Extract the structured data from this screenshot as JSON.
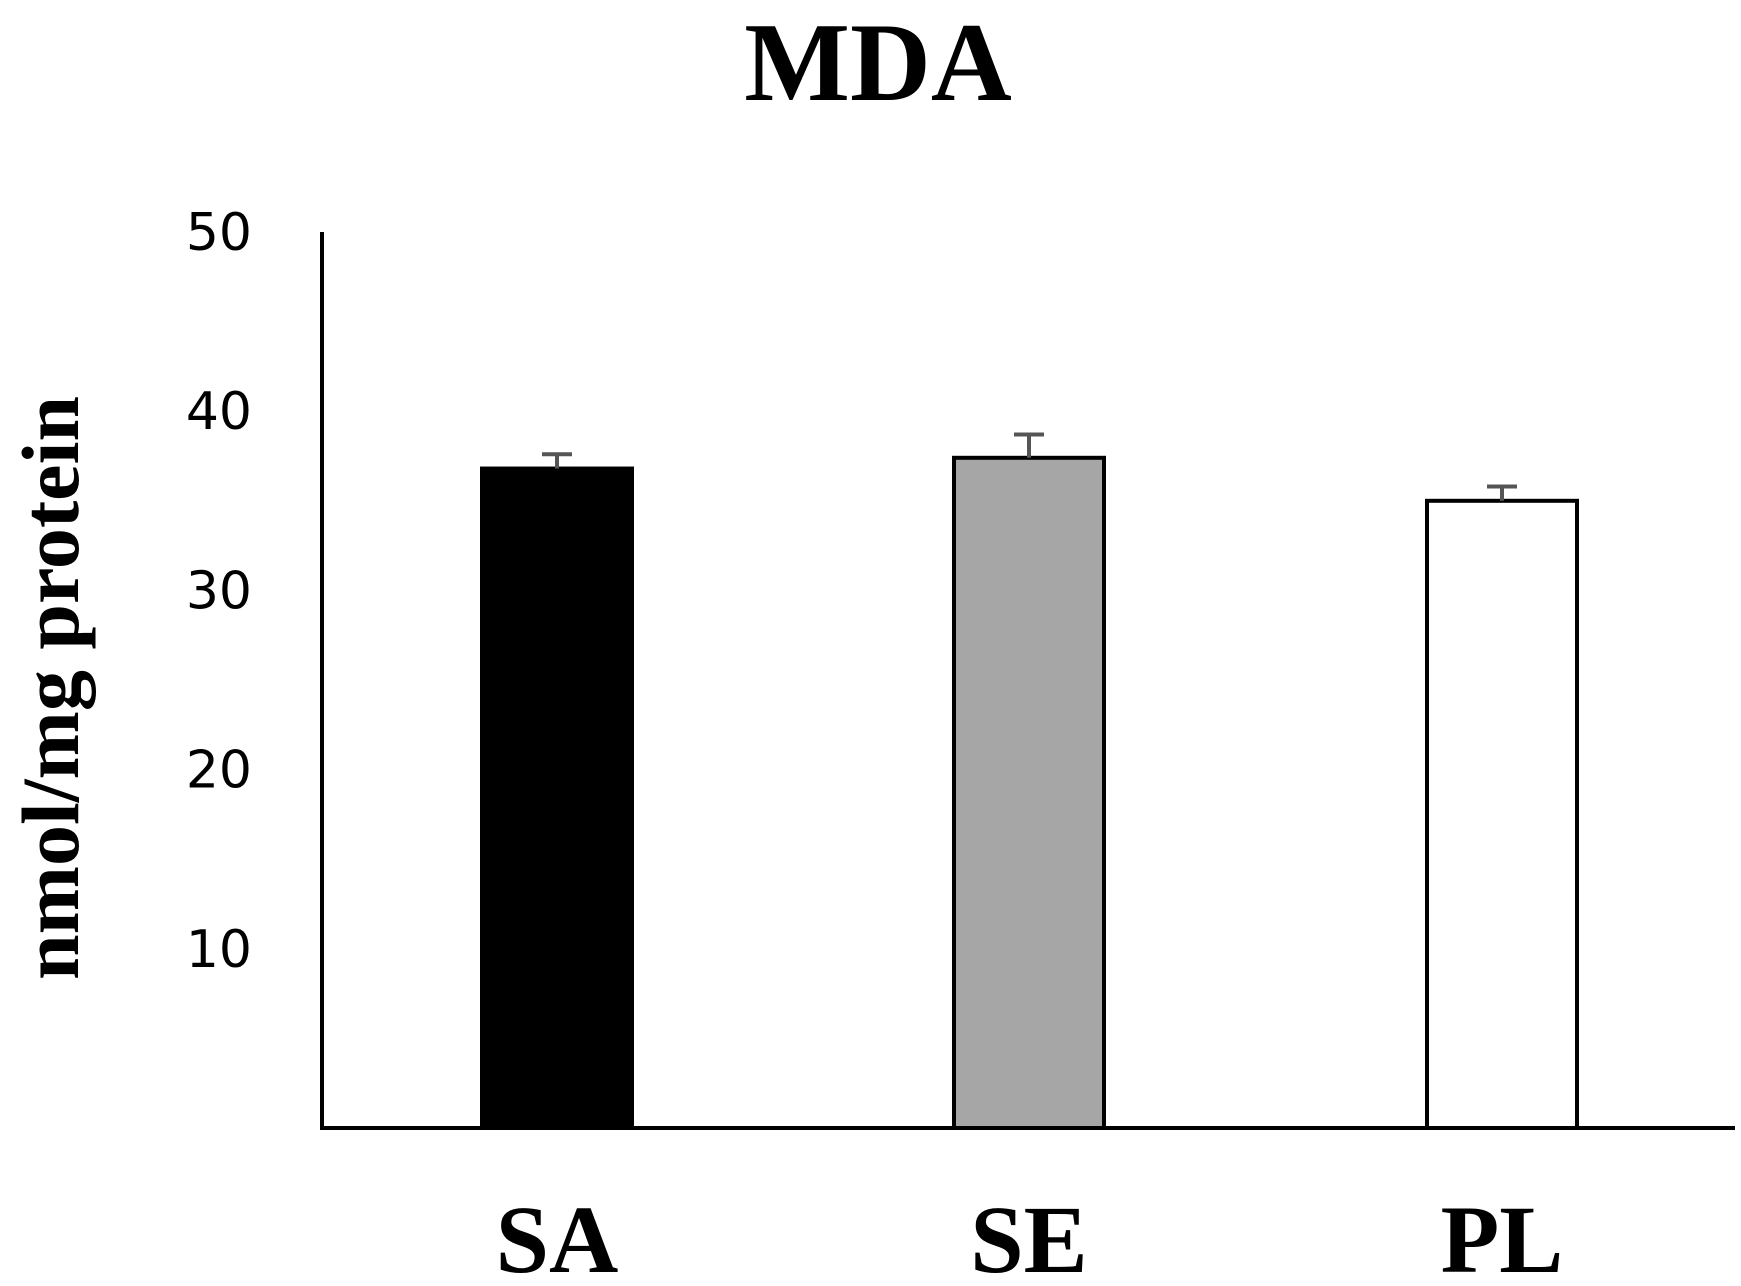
{
  "chart_data": {
    "type": "bar",
    "title": "MDA",
    "xlabel": "",
    "ylabel": "nmol/mg protein",
    "categories": [
      "SA",
      "SE",
      "PL"
    ],
    "values": [
      36.8,
      37.4,
      35.0
    ],
    "errors": [
      0.8,
      1.3,
      0.8
    ],
    "bar_colors": [
      "#000000",
      "#a6a6a6",
      "#ffffff"
    ],
    "ylim": [
      0,
      50
    ],
    "yticks": [
      10,
      20,
      30,
      40,
      50
    ],
    "grid": false,
    "legend": "none"
  }
}
